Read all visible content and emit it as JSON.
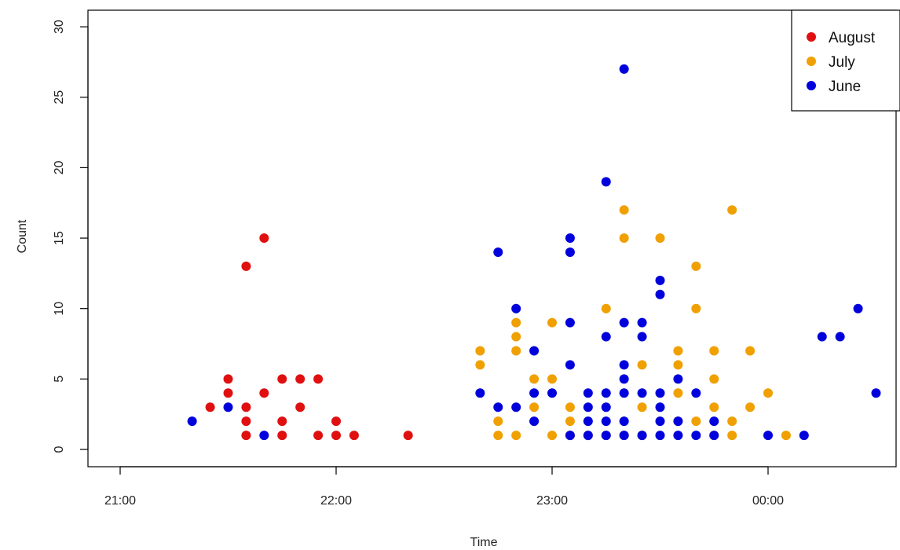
{
  "chart_data": {
    "type": "scatter",
    "title": "",
    "xlabel": "Time",
    "ylabel": "Count",
    "x_unit": "minutes since 21:00 (shown as clock time)",
    "xlim": [
      -10,
      225
    ],
    "ylim": [
      -1.5,
      31
    ],
    "x_ticks": [
      {
        "value": 0,
        "label": "21:00"
      },
      {
        "value": 60,
        "label": "22:00"
      },
      {
        "value": 120,
        "label": "23:00"
      },
      {
        "value": 180,
        "label": "00:00"
      }
    ],
    "y_ticks": [
      {
        "value": 0,
        "label": "0"
      },
      {
        "value": 5,
        "label": "5"
      },
      {
        "value": 10,
        "label": "10"
      },
      {
        "value": 15,
        "label": "15"
      },
      {
        "value": 20,
        "label": "20"
      },
      {
        "value": 25,
        "label": "25"
      },
      {
        "value": 30,
        "label": "30"
      }
    ],
    "grid": false,
    "legend_position": "top-right",
    "series": [
      {
        "name": "August",
        "color": "#e01010",
        "points": [
          [
            25,
            3
          ],
          [
            30,
            5
          ],
          [
            30,
            4
          ],
          [
            35,
            13
          ],
          [
            35,
            3
          ],
          [
            35,
            2
          ],
          [
            35,
            1
          ],
          [
            40,
            15
          ],
          [
            40,
            4
          ],
          [
            45,
            5
          ],
          [
            45,
            2
          ],
          [
            45,
            1
          ],
          [
            50,
            5
          ],
          [
            50,
            3
          ],
          [
            55,
            5
          ],
          [
            55,
            1
          ],
          [
            60,
            2
          ],
          [
            60,
            1
          ],
          [
            65,
            1
          ],
          [
            80,
            1
          ]
        ]
      },
      {
        "name": "July",
        "color": "#f0a000",
        "points": [
          [
            100,
            7
          ],
          [
            100,
            6
          ],
          [
            105,
            2
          ],
          [
            105,
            1
          ],
          [
            110,
            9
          ],
          [
            110,
            8
          ],
          [
            110,
            7
          ],
          [
            110,
            1
          ],
          [
            115,
            5
          ],
          [
            115,
            3
          ],
          [
            120,
            9
          ],
          [
            120,
            5
          ],
          [
            120,
            1
          ],
          [
            125,
            3
          ],
          [
            125,
            2
          ],
          [
            125,
            1
          ],
          [
            130,
            1
          ],
          [
            135,
            10
          ],
          [
            135,
            1
          ],
          [
            140,
            17
          ],
          [
            140,
            15
          ],
          [
            140,
            1
          ],
          [
            145,
            6
          ],
          [
            145,
            3
          ],
          [
            145,
            1
          ],
          [
            150,
            15
          ],
          [
            155,
            7
          ],
          [
            155,
            6
          ],
          [
            155,
            4
          ],
          [
            155,
            2
          ],
          [
            160,
            13
          ],
          [
            160,
            10
          ],
          [
            160,
            2
          ],
          [
            165,
            7
          ],
          [
            165,
            5
          ],
          [
            165,
            3
          ],
          [
            165,
            1
          ],
          [
            170,
            17
          ],
          [
            170,
            2
          ],
          [
            170,
            1
          ],
          [
            175,
            7
          ],
          [
            175,
            3
          ],
          [
            180,
            4
          ],
          [
            185,
            1
          ]
        ]
      },
      {
        "name": "June",
        "color": "#0000dd",
        "points": [
          [
            20,
            2
          ],
          [
            30,
            3
          ],
          [
            40,
            1
          ],
          [
            100,
            4
          ],
          [
            105,
            14
          ],
          [
            105,
            3
          ],
          [
            110,
            10
          ],
          [
            110,
            3
          ],
          [
            115,
            7
          ],
          [
            115,
            4
          ],
          [
            115,
            2
          ],
          [
            120,
            4
          ],
          [
            125,
            15
          ],
          [
            125,
            14
          ],
          [
            125,
            9
          ],
          [
            125,
            6
          ],
          [
            125,
            1
          ],
          [
            130,
            4
          ],
          [
            130,
            3
          ],
          [
            130,
            2
          ],
          [
            130,
            1
          ],
          [
            135,
            19
          ],
          [
            135,
            8
          ],
          [
            135,
            4
          ],
          [
            135,
            3
          ],
          [
            135,
            2
          ],
          [
            135,
            1
          ],
          [
            140,
            27
          ],
          [
            140,
            9
          ],
          [
            140,
            6
          ],
          [
            140,
            5
          ],
          [
            140,
            4
          ],
          [
            140,
            2
          ],
          [
            140,
            1
          ],
          [
            145,
            9
          ],
          [
            145,
            8
          ],
          [
            145,
            4
          ],
          [
            145,
            1
          ],
          [
            150,
            12
          ],
          [
            150,
            11
          ],
          [
            150,
            4
          ],
          [
            150,
            3
          ],
          [
            150,
            2
          ],
          [
            150,
            1
          ],
          [
            155,
            5
          ],
          [
            155,
            2
          ],
          [
            155,
            1
          ],
          [
            160,
            4
          ],
          [
            160,
            1
          ],
          [
            165,
            2
          ],
          [
            165,
            1
          ],
          [
            180,
            1
          ],
          [
            190,
            1
          ],
          [
            195,
            8
          ],
          [
            200,
            8
          ],
          [
            205,
            10
          ],
          [
            210,
            4
          ]
        ]
      }
    ]
  }
}
